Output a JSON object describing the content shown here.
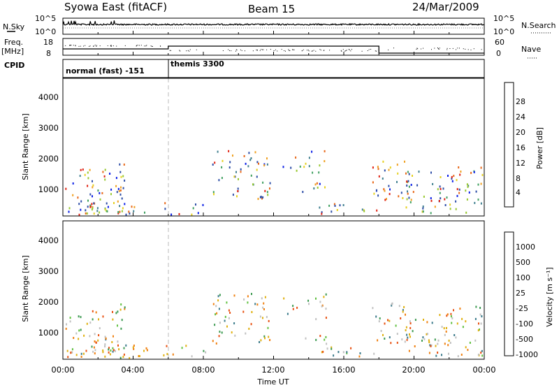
{
  "header": {
    "station": "Syowa East (fitACF)",
    "beam": "Beam 15",
    "date": "24/Mar/2009"
  },
  "sky_panel": {
    "left_label": "N.Sky",
    "right_label": "N.Search",
    "left_ticks": [
      "10^5",
      "10^0"
    ],
    "right_ticks": [
      "10^5",
      "10^0"
    ]
  },
  "freq_panel": {
    "left_label_line1": "Freq.",
    "left_label_line2": "[MHz]",
    "right_label": "Nave",
    "left_ticks": [
      "18",
      "8"
    ],
    "right_ticks": [
      "60",
      "0"
    ]
  },
  "cpid": {
    "label": "CPID",
    "segments": [
      {
        "text": "normal (fast) -151",
        "start_hour": 0,
        "end_hour": 6
      },
      {
        "text": "themis 3300",
        "start_hour": 6,
        "end_hour": 24
      }
    ]
  },
  "time_axis": {
    "label": "Time UT",
    "ticks": [
      "00:00",
      "04:00",
      "08:00",
      "12:00",
      "16:00",
      "20:00",
      "00:00"
    ],
    "range_hours": [
      0,
      24
    ]
  },
  "range_axis": {
    "label": "Slant Range [km]",
    "ticks": [
      "1000",
      "2000",
      "3000",
      "4000"
    ],
    "range_km": [
      180,
      4600
    ]
  },
  "power_colorbar": {
    "label": "Power [dB]",
    "ticks": [
      "4",
      "8",
      "12",
      "16",
      "20",
      "24",
      "28"
    ],
    "colors": [
      "#0a1ee6",
      "#2c4ca6",
      "#3f7f8f",
      "#40a060",
      "#98c830",
      "#e6d020",
      "#f0a020",
      "#e86818",
      "#e02010"
    ]
  },
  "velocity_colorbar": {
    "label": "Velocity [m s⁻¹]",
    "ticks": [
      "1000",
      "500",
      "100",
      "25",
      "-25",
      "-100",
      "-500",
      "-1000"
    ],
    "colors": [
      "#2040c8",
      "#3a7a8a",
      "#3c9a50",
      "#60c040",
      "#c0c0c0",
      "#e0b010",
      "#f08010",
      "#e85010",
      "#e01010"
    ]
  },
  "chart_data": {
    "type": "heatmap",
    "x_range_hours": [
      0,
      24
    ],
    "y_range_km": [
      180,
      4600
    ],
    "cpid_change_hour": 6,
    "freq_step_hour": 18,
    "power_clusters": [
      {
        "t0": 0.1,
        "t1": 3.6,
        "r0": 250,
        "r1": 1750,
        "density": 0.55
      },
      {
        "t0": 1.5,
        "t1": 4.8,
        "r0": 250,
        "r1": 650,
        "density": 0.75
      },
      {
        "t0": 3.0,
        "t1": 3.5,
        "r0": 1400,
        "r1": 2000,
        "density": 0.6
      },
      {
        "t0": 5.7,
        "t1": 8.2,
        "r0": 250,
        "r1": 650,
        "density": 0.4
      },
      {
        "t0": 8.5,
        "t1": 11.8,
        "r0": 700,
        "r1": 2300,
        "density": 0.45
      },
      {
        "t0": 12.5,
        "t1": 13.5,
        "r0": 1600,
        "r1": 2200,
        "density": 0.35
      },
      {
        "t0": 13.6,
        "t1": 15.0,
        "r0": 700,
        "r1": 2300,
        "density": 0.35
      },
      {
        "t0": 14.3,
        "t1": 18.0,
        "r0": 280,
        "r1": 600,
        "density": 0.55
      },
      {
        "t0": 17.6,
        "t1": 19.8,
        "r0": 700,
        "r1": 2000,
        "density": 0.55
      },
      {
        "t0": 19.5,
        "t1": 22.2,
        "r0": 300,
        "r1": 1700,
        "density": 0.5
      },
      {
        "t0": 22.0,
        "t1": 23.9,
        "r0": 300,
        "r1": 1900,
        "density": 0.45
      }
    ]
  }
}
